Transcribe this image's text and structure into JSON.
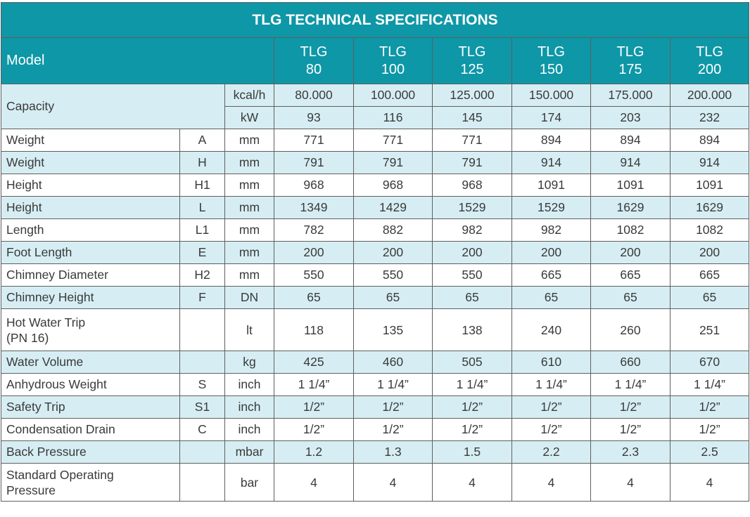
{
  "title": "TLG TECHNICAL SPECIFICATIONS",
  "header": {
    "model_label": "Model",
    "models": [
      {
        "line1": "TLG",
        "line2": "80"
      },
      {
        "line1": "TLG",
        "line2": "100"
      },
      {
        "line1": "TLG",
        "line2": "125"
      },
      {
        "line1": "TLG",
        "line2": "150"
      },
      {
        "line1": "TLG",
        "line2": "175"
      },
      {
        "line1": "TLG",
        "line2": "200"
      }
    ]
  },
  "capacity": {
    "label": "Capacity",
    "rows": [
      {
        "unit": "kcal/h",
        "values": [
          "80.000",
          "100.000",
          "125.000",
          "150.000",
          "175.000",
          "200.000"
        ]
      },
      {
        "unit": "kW",
        "values": [
          "93",
          "116",
          "145",
          "174",
          "203",
          "232"
        ]
      }
    ]
  },
  "rows": [
    {
      "label": "Weight",
      "code": "A",
      "unit": "mm",
      "values": [
        "771",
        "771",
        "771",
        "894",
        "894",
        "894"
      ]
    },
    {
      "label": "Weight",
      "code": "H",
      "unit": "mm",
      "values": [
        "791",
        "791",
        "791",
        "914",
        "914",
        "914"
      ]
    },
    {
      "label": "Height",
      "code": "H1",
      "unit": "mm",
      "values": [
        "968",
        "968",
        "968",
        "1091",
        "1091",
        "1091"
      ]
    },
    {
      "label": "Height",
      "code": "L",
      "unit": "mm",
      "values": [
        "1349",
        "1429",
        "1529",
        "1529",
        "1629",
        "1629"
      ]
    },
    {
      "label": "Length",
      "code": "L1",
      "unit": "mm",
      "values": [
        "782",
        "882",
        "982",
        "982",
        "1082",
        "1082"
      ]
    },
    {
      "label": "Foot Length",
      "code": "E",
      "unit": "mm",
      "values": [
        "200",
        "200",
        "200",
        "200",
        "200",
        "200"
      ]
    },
    {
      "label": "Chimney Diameter",
      "code": "H2",
      "unit": "mm",
      "values": [
        "550",
        "550",
        "550",
        "665",
        "665",
        "665"
      ]
    },
    {
      "label": "Chimney Height",
      "code": "F",
      "unit": "DN",
      "values": [
        "65",
        "65",
        "65",
        "65",
        "65",
        "65"
      ]
    },
    {
      "label": "Hot Water Trip",
      "label2": "(PN 16)",
      "code": "",
      "unit": "lt",
      "values": [
        "118",
        "135",
        "138",
        "240",
        "260",
        "251"
      ]
    },
    {
      "label": "Water Volume",
      "code": "",
      "unit": "kg",
      "values": [
        "425",
        "460",
        "505",
        "610",
        "660",
        "670"
      ]
    },
    {
      "label": "Anhydrous Weight",
      "code": "S",
      "unit": "inch",
      "values": [
        "1 1/4”",
        "1 1/4”",
        "1 1/4”",
        "1 1/4”",
        "1 1/4”",
        "1 1/4”"
      ]
    },
    {
      "label": "Safety Trip",
      "code": "S1",
      "unit": "inch",
      "values": [
        "1/2”",
        "1/2”",
        "1/2”",
        "1/2”",
        "1/2”",
        "1/2”"
      ]
    },
    {
      "label": "Condensation Drain",
      "code": "C",
      "unit": "inch",
      "values": [
        "1/2”",
        "1/2”",
        "1/2”",
        "1/2”",
        "1/2”",
        "1/2”"
      ]
    },
    {
      "label": "Back Pressure",
      "code": "",
      "unit": "mbar",
      "values": [
        "1.2",
        "1.3",
        "1.5",
        "2.2",
        "2.3",
        "2.5"
      ]
    },
    {
      "label": "Standard Operating",
      "label2": "Pressure",
      "code": "",
      "unit": "bar",
      "values": [
        "4",
        "4",
        "4",
        "4",
        "4",
        "4"
      ]
    }
  ],
  "colors": {
    "header_bg": "#0e97a7",
    "header_text": "#ffffff",
    "row_alt_bg": "#d6eef3",
    "row_plain_bg": "#ffffff",
    "border": "#5f5f5f",
    "text": "#3a3a3a"
  }
}
